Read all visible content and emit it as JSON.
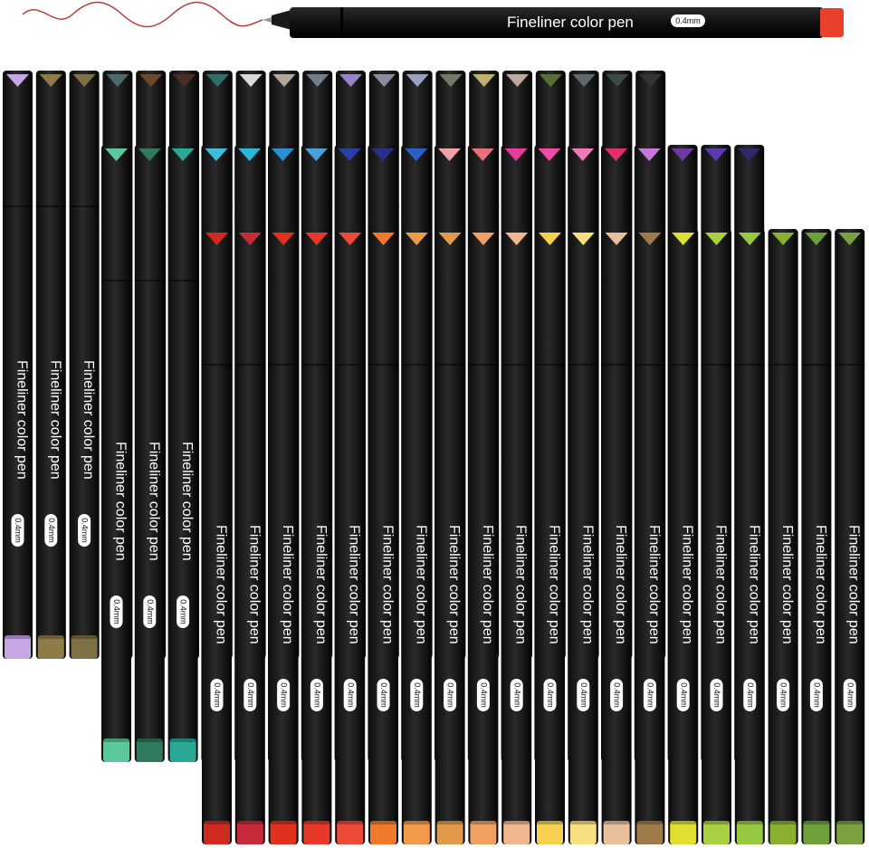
{
  "pen_label": "Fineliner color pen",
  "tip_size": "0.4mm",
  "hero_pen": {
    "cap_color": "#e8402a",
    "line_color": "#b83a3a"
  },
  "rows": {
    "back": [
      "#c7a6e6",
      "#8f7a4a",
      "#7e7145",
      "#4d6a6a",
      "#6b4a2a",
      "#4a2e26",
      "#2f6f6a",
      "#d9d9d9",
      "#b3a79a",
      "#6f7f8c",
      "#9a82c8",
      "#8b8ba0",
      "#9aa0c0",
      "#6f7a68",
      "#c0b070",
      "#c0a7a0",
      "#5a6e3a",
      "#5f6a70",
      "#3a4a44",
      "#333333"
    ],
    "middle": [
      "#5cc79a",
      "#2e7a5a",
      "#2aa896",
      "#3fbcd6",
      "#2ab8d8",
      "#2a8fd0",
      "#4aa0d8",
      "#2a3ea8",
      "#2a2f88",
      "#2a5fc8",
      "#f0a0a8",
      "#e8707a",
      "#e83a9a",
      "#f04aa8",
      "#f07ab8",
      "#e0306a",
      "#c878d8",
      "#6a3aa0",
      "#5a3ab0",
      "#2a2a6a"
    ],
    "front": [
      "#d02a1e",
      "#c82a3a",
      "#e0301e",
      "#e8382a",
      "#ee4a38",
      "#f07a2a",
      "#f09a4a",
      "#e09a4a",
      "#f0a060",
      "#f0b890",
      "#f8d050",
      "#f8e080",
      "#e8c09a",
      "#a07a4a",
      "#e0e030",
      "#a8d040",
      "#98c840",
      "#8ab030",
      "#6ea03a",
      "#7aa040"
    ]
  }
}
